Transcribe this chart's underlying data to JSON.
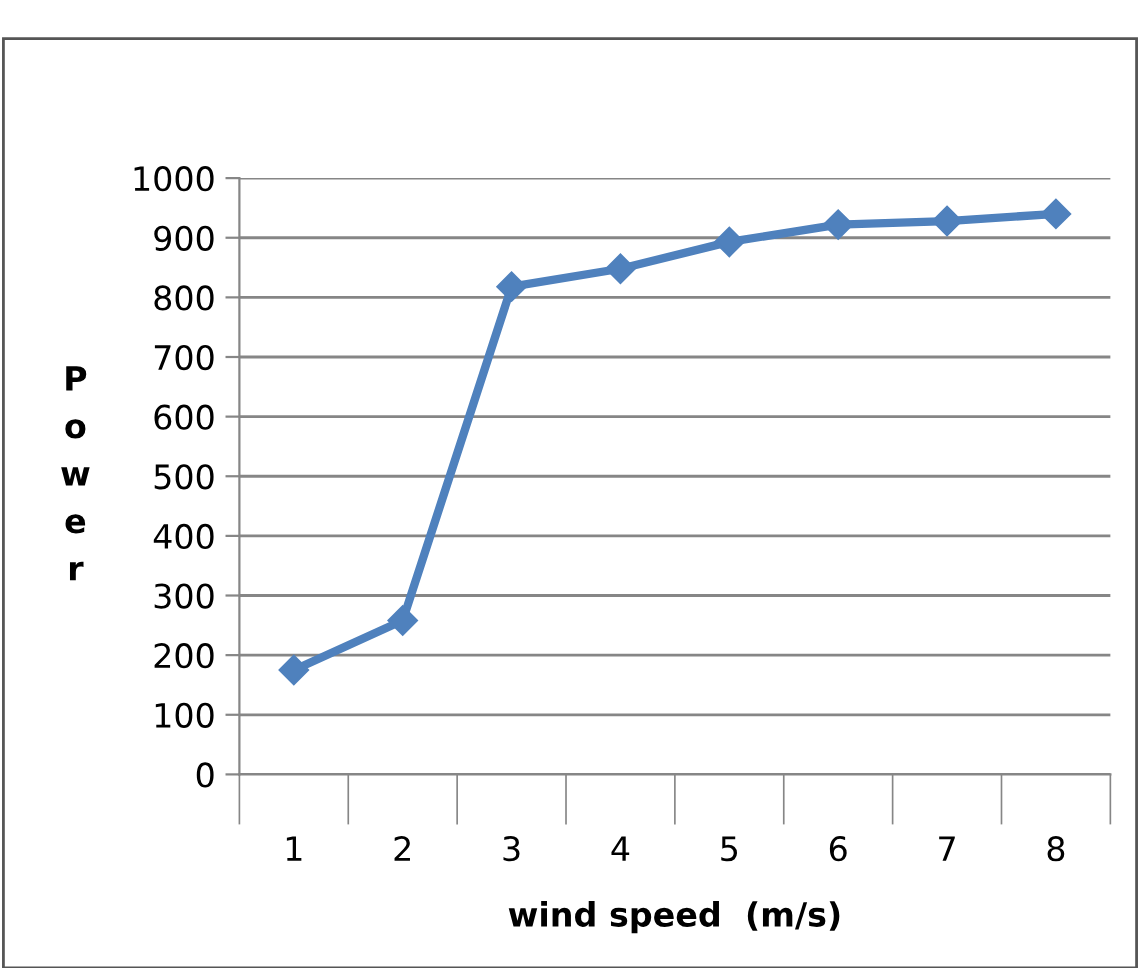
{
  "chart_data": {
    "type": "line",
    "xlabel": "wind speed  (m/s)",
    "ylabel": "Power",
    "categories": [
      "1",
      "2",
      "3",
      "4",
      "5",
      "6",
      "7",
      "8"
    ],
    "series": [
      {
        "color": "#4f81bd",
        "values": [
          175,
          258,
          818,
          848,
          893,
          922,
          928,
          940
        ]
      }
    ],
    "ylim": [
      0,
      1000
    ],
    "yticks": [
      0,
      100,
      200,
      300,
      400,
      500,
      600,
      700,
      800,
      900,
      1000
    ],
    "grid": "y",
    "legend": false,
    "marker": "diamond",
    "line_style": "solid"
  }
}
